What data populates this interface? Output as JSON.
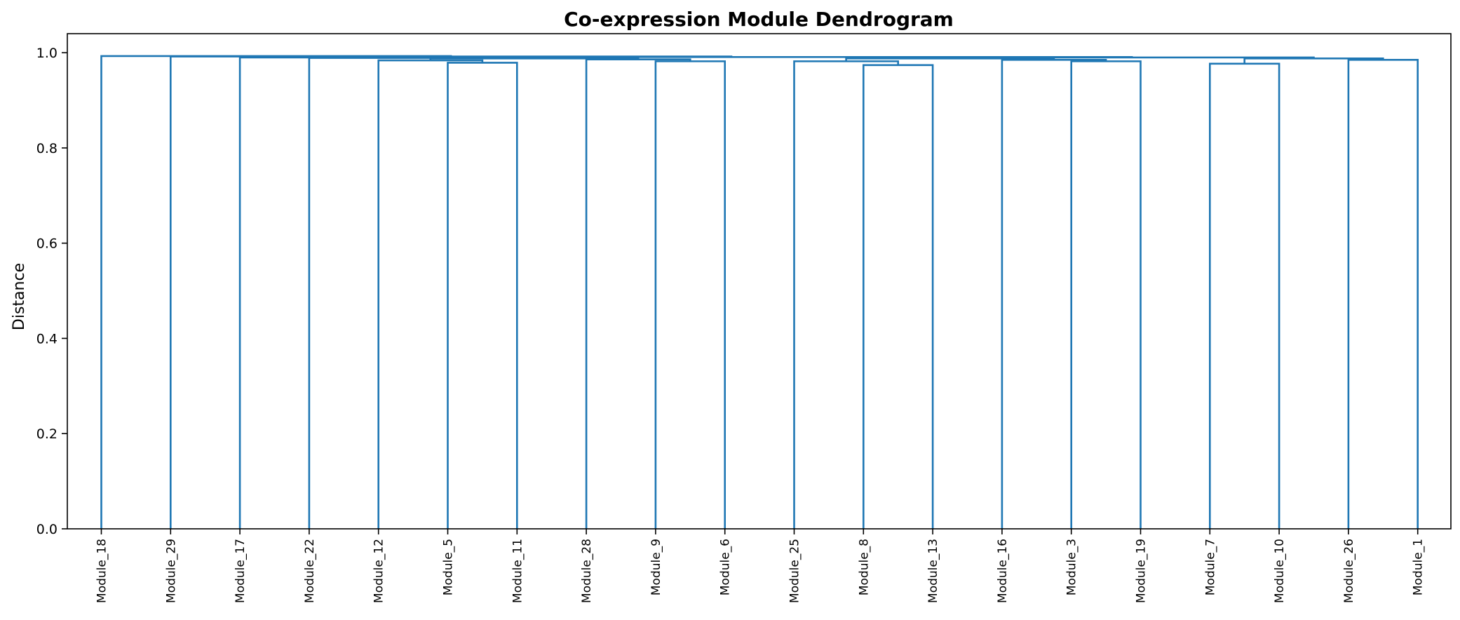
{
  "chart_data": {
    "type": "dendrogram",
    "title": "Co-expression Module Dendrogram",
    "xlabel": "",
    "ylabel": "Distance",
    "ylim": [
      0.0,
      1.04
    ],
    "yticks": [
      "0.0",
      "0.2",
      "0.4",
      "0.6",
      "0.8",
      "1.0"
    ],
    "ytick_values": [
      0.0,
      0.2,
      0.4,
      0.6,
      0.8,
      1.0
    ],
    "grid": false,
    "link_color": "#1f77b4",
    "leaves": [
      "Module_18",
      "Module_29",
      "Module_17",
      "Module_22",
      "Module_12",
      "Module_5",
      "Module_11",
      "Module_28",
      "Module_9",
      "Module_6",
      "Module_25",
      "Module_8",
      "Module_13",
      "Module_16",
      "Module_3",
      "Module_19",
      "Module_7",
      "Module_10",
      "Module_26",
      "Module_1"
    ],
    "merges": [
      {
        "id": "n1",
        "left": "Module_5",
        "right": "Module_11",
        "height": 0.979
      },
      {
        "id": "n2",
        "left": "Module_12",
        "right": "n1",
        "height": 0.984
      },
      {
        "id": "n3",
        "left": "Module_9",
        "right": "Module_6",
        "height": 0.982
      },
      {
        "id": "n4",
        "left": "Module_28",
        "right": "n3",
        "height": 0.986
      },
      {
        "id": "n5",
        "left": "n2",
        "right": "n4",
        "height": 0.988
      },
      {
        "id": "n6",
        "left": "Module_22",
        "right": "n5",
        "height": 0.989
      },
      {
        "id": "n7",
        "left": "Module_17",
        "right": "n6",
        "height": 0.99
      },
      {
        "id": "n8",
        "left": "Module_8",
        "right": "Module_13",
        "height": 0.974
      },
      {
        "id": "n9",
        "left": "Module_25",
        "right": "n8",
        "height": 0.982
      },
      {
        "id": "n10",
        "left": "Module_3",
        "right": "Module_19",
        "height": 0.982
      },
      {
        "id": "n11",
        "left": "Module_16",
        "right": "n10",
        "height": 0.985
      },
      {
        "id": "n12",
        "left": "n9",
        "right": "n11",
        "height": 0.988
      },
      {
        "id": "n13",
        "left": "Module_7",
        "right": "Module_10",
        "height": 0.977
      },
      {
        "id": "n14",
        "left": "Module_26",
        "right": "Module_1",
        "height": 0.985
      },
      {
        "id": "n15",
        "left": "n13",
        "right": "n14",
        "height": 0.988
      },
      {
        "id": "n16",
        "left": "n12",
        "right": "n15",
        "height": 0.99
      },
      {
        "id": "n17",
        "left": "n7",
        "right": "n16",
        "height": 0.991
      },
      {
        "id": "n18",
        "left": "Module_29",
        "right": "n17",
        "height": 0.992
      },
      {
        "id": "n19",
        "left": "Module_18",
        "right": "n18",
        "height": 0.993
      }
    ]
  }
}
